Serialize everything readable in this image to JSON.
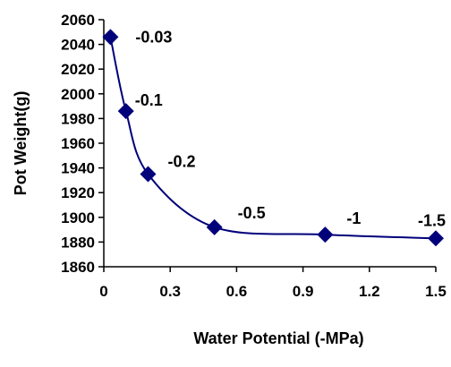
{
  "chart_data": {
    "type": "scatter",
    "title": "",
    "xlabel": "Water Potential (-MPa)",
    "ylabel": "Pot Weight(g)",
    "xlim": [
      0,
      1.5
    ],
    "ylim": [
      1860,
      2060
    ],
    "x_ticks": [
      "0",
      "0.3",
      "0.6",
      "0.9",
      "1.2",
      "1.5"
    ],
    "y_ticks": [
      "1860",
      "1880",
      "1900",
      "1920",
      "1940",
      "1960",
      "1980",
      "2000",
      "2020",
      "2040",
      "2060"
    ],
    "grid": false,
    "legend": "none",
    "smooth_line": true,
    "marker": "diamond",
    "color": "#00007a",
    "series": [
      {
        "points": [
          {
            "x": 0.03,
            "y": 2046,
            "label": "-0.03"
          },
          {
            "x": 0.1,
            "y": 1986,
            "label": "-0.1"
          },
          {
            "x": 0.2,
            "y": 1935,
            "label": "-0.2"
          },
          {
            "x": 0.5,
            "y": 1892,
            "label": "-0.5"
          },
          {
            "x": 1.0,
            "y": 1886,
            "label": "-1"
          },
          {
            "x": 1.5,
            "y": 1883,
            "label": "-1.5"
          }
        ]
      }
    ]
  }
}
